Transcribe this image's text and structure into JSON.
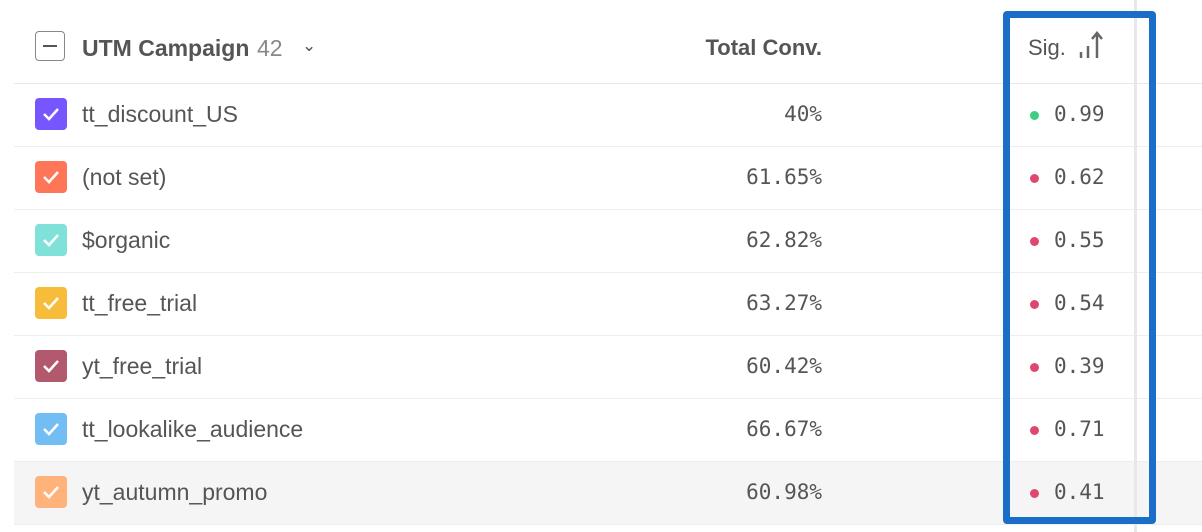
{
  "header": {
    "column_label": "UTM Campaign",
    "count": "42",
    "conv_label": "Total Conv.",
    "sig_label": "Sig."
  },
  "colors": {
    "highlight": "#1a6ec8",
    "sig_good": "#3ccf82",
    "sig_bad": "#e0476e"
  },
  "rows": [
    {
      "name": "tt_discount_US",
      "conv": "40%",
      "sig": "0.99",
      "color": "#7856ff",
      "sig_color": "#3ccf82"
    },
    {
      "name": "(not set)",
      "conv": "61.65%",
      "sig": "0.62",
      "color": "#ff7557",
      "sig_color": "#e0476e"
    },
    {
      "name": "$organic",
      "conv": "62.82%",
      "sig": "0.55",
      "color": "#80e1d9",
      "sig_color": "#e0476e"
    },
    {
      "name": "tt_free_trial",
      "conv": "63.27%",
      "sig": "0.54",
      "color": "#f8bc3b",
      "sig_color": "#e0476e"
    },
    {
      "name": "yt_free_trial",
      "conv": "60.42%",
      "sig": "0.39",
      "color": "#b2596e",
      "sig_color": "#e0476e"
    },
    {
      "name": "tt_lookalike_audience",
      "conv": "66.67%",
      "sig": "0.71",
      "color": "#72bef4",
      "sig_color": "#e0476e"
    },
    {
      "name": "yt_autumn_promo",
      "conv": "60.98%",
      "sig": "0.41",
      "color": "#ffb27a",
      "sig_color": "#e0476e"
    }
  ]
}
